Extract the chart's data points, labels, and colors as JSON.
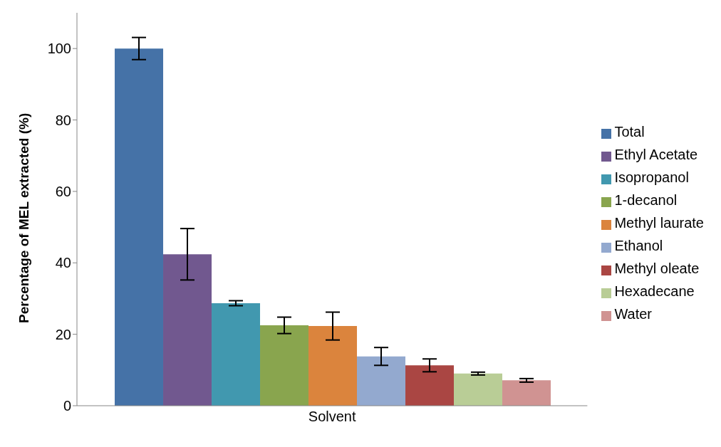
{
  "chart_data": {
    "type": "bar",
    "ylabel": "Percentage of MEL extracted (%)",
    "categories": [
      "Solvent"
    ],
    "ylim": [
      0,
      110
    ],
    "yticks": [
      0,
      20,
      40,
      60,
      80,
      100
    ],
    "grid": false,
    "legend": "right",
    "series": [
      {
        "name": "Total",
        "color": "#4572a7",
        "values": [
          100
        ],
        "errors": [
          3.1
        ]
      },
      {
        "name": "Ethyl Acetate",
        "color": "#71588f",
        "values": [
          42.4
        ],
        "errors": [
          7.2
        ]
      },
      {
        "name": "Isopropanol",
        "color": "#4198af",
        "values": [
          28.7
        ],
        "errors": [
          0.7
        ]
      },
      {
        "name": "1-decanol",
        "color": "#89a54e",
        "values": [
          22.5
        ],
        "errors": [
          2.3
        ]
      },
      {
        "name": "Methyl laurate",
        "color": "#db843d",
        "values": [
          22.3
        ],
        "errors": [
          3.9
        ]
      },
      {
        "name": "Ethanol",
        "color": "#93a9cf",
        "values": [
          13.8
        ],
        "errors": [
          2.5
        ]
      },
      {
        "name": "Methyl oleate",
        "color": "#aa4643",
        "values": [
          11.3
        ],
        "errors": [
          1.8
        ]
      },
      {
        "name": "Hexadecane",
        "color": "#b9cd96",
        "values": [
          9.0
        ],
        "errors": [
          0.4
        ]
      },
      {
        "name": "Water",
        "color": "#d09392",
        "values": [
          7.1
        ],
        "errors": [
          0.5
        ]
      }
    ]
  }
}
